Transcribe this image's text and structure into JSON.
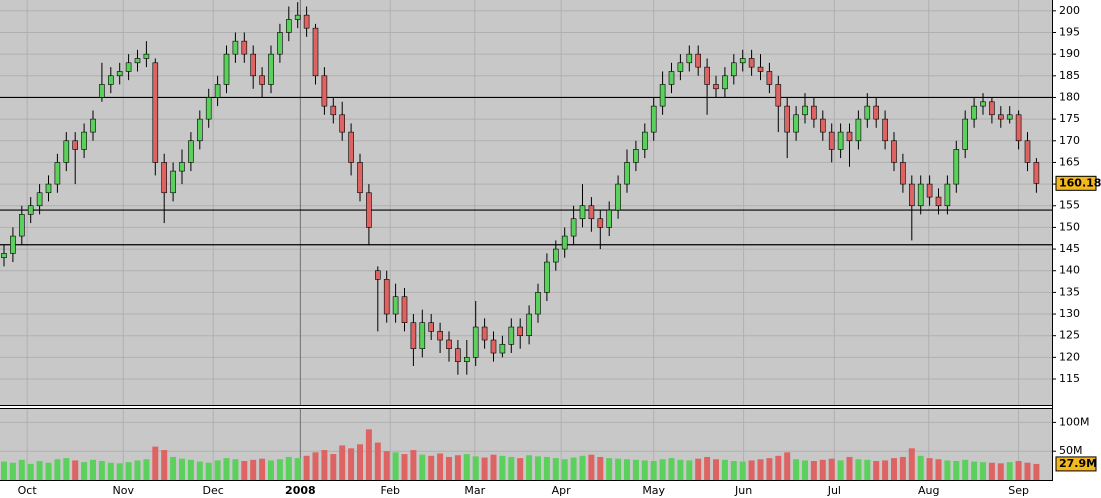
{
  "chart_data": {
    "type": "candlestick",
    "open": [
      143,
      144,
      148,
      153,
      155,
      158,
      160,
      165,
      170,
      168,
      172,
      180,
      183,
      185,
      186,
      188,
      189,
      188,
      165,
      158,
      163,
      165,
      170,
      175,
      180,
      183,
      190,
      193,
      190,
      185,
      183,
      190,
      195,
      198,
      199,
      196,
      185,
      178,
      176,
      172,
      165,
      158,
      140,
      138,
      130,
      134,
      128,
      122,
      128,
      126,
      124,
      122,
      119,
      120,
      127,
      124,
      121,
      123,
      127,
      125,
      130,
      135,
      142,
      145,
      148,
      152,
      155,
      152,
      150,
      154,
      160,
      165,
      168,
      172,
      178,
      183,
      186,
      188,
      190,
      187,
      183,
      182,
      185,
      188,
      189,
      187,
      186,
      183,
      178,
      172,
      176,
      178,
      175,
      172,
      168,
      172,
      170,
      175,
      178,
      175,
      170,
      165,
      160,
      155,
      160,
      157,
      155,
      160,
      168,
      175,
      178,
      179,
      176,
      175,
      176,
      170,
      165
    ],
    "high": [
      146,
      150,
      155,
      157,
      160,
      162,
      167,
      172,
      172,
      174,
      177,
      188,
      187,
      188,
      190,
      191,
      193,
      189,
      167,
      165,
      168,
      172,
      177,
      182,
      185,
      192,
      195,
      195,
      192,
      187,
      192,
      197,
      201,
      202,
      201,
      197,
      187,
      180,
      179,
      174,
      167,
      160,
      141,
      140,
      137,
      136,
      130,
      131,
      130,
      128,
      126,
      124,
      124,
      133,
      129,
      126,
      125,
      129,
      129,
      132,
      137,
      144,
      147,
      150,
      155,
      160,
      157,
      154,
      156,
      162,
      168,
      170,
      174,
      180,
      186,
      188,
      190,
      192,
      192,
      189,
      185,
      187,
      190,
      191,
      191,
      190,
      188,
      185,
      180,
      178,
      181,
      180,
      177,
      174,
      174,
      174,
      177,
      181,
      180,
      177,
      172,
      167,
      162,
      162,
      162,
      159,
      162,
      170,
      177,
      180,
      181,
      180,
      178,
      178,
      177,
      172,
      166
    ],
    "low": [
      141,
      142,
      146,
      151,
      153,
      156,
      158,
      163,
      160,
      166,
      170,
      179,
      181,
      183,
      184,
      186,
      187,
      162,
      151,
      156,
      160,
      163,
      168,
      173,
      178,
      181,
      188,
      188,
      182,
      180,
      181,
      188,
      193,
      196,
      194,
      183,
      176,
      174,
      170,
      162,
      156,
      146,
      126,
      128,
      128,
      126,
      118,
      120,
      124,
      121,
      119,
      116,
      116,
      118,
      122,
      119,
      120,
      121,
      122,
      123,
      128,
      133,
      140,
      143,
      146,
      150,
      149,
      145,
      148,
      152,
      158,
      163,
      166,
      170,
      176,
      181,
      184,
      186,
      185,
      176,
      180,
      180,
      183,
      186,
      185,
      184,
      181,
      172,
      166,
      170,
      174,
      173,
      170,
      165,
      166,
      164,
      168,
      173,
      173,
      168,
      163,
      158,
      147,
      153,
      155,
      153,
      153,
      158,
      166,
      173,
      176,
      174,
      173,
      174,
      168,
      163,
      158
    ],
    "close": [
      144,
      148,
      153,
      155,
      158,
      160,
      165,
      170,
      168,
      172,
      175,
      183,
      185,
      186,
      188,
      189,
      190,
      165,
      158,
      163,
      165,
      170,
      175,
      180,
      183,
      190,
      193,
      190,
      185,
      183,
      190,
      195,
      198,
      199,
      196,
      185,
      178,
      176,
      172,
      165,
      158,
      150,
      138,
      130,
      134,
      128,
      122,
      128,
      126,
      124,
      122,
      119,
      120,
      127,
      124,
      121,
      123,
      127,
      125,
      130,
      135,
      142,
      145,
      148,
      152,
      155,
      152,
      150,
      154,
      160,
      165,
      168,
      172,
      178,
      183,
      186,
      188,
      190,
      187,
      183,
      182,
      185,
      188,
      189,
      187,
      186,
      183,
      178,
      172,
      176,
      178,
      175,
      172,
      168,
      172,
      170,
      175,
      178,
      175,
      170,
      165,
      160,
      155,
      160,
      157,
      155,
      160,
      168,
      175,
      178,
      179,
      176,
      175,
      176,
      170,
      165,
      160.18
    ],
    "volume": [
      32,
      30,
      35,
      28,
      33,
      30,
      36,
      38,
      34,
      31,
      35,
      33,
      30,
      29,
      31,
      34,
      36,
      58,
      52,
      40,
      37,
      35,
      32,
      30,
      34,
      38,
      36,
      33,
      35,
      37,
      34,
      36,
      40,
      38,
      42,
      48,
      52,
      45,
      60,
      55,
      62,
      88,
      65,
      50,
      48,
      45,
      52,
      44,
      42,
      46,
      40,
      43,
      45,
      41,
      39,
      44,
      42,
      40,
      38,
      43,
      41,
      40,
      38,
      36,
      39,
      42,
      44,
      40,
      38,
      37,
      36,
      35,
      34,
      33,
      36,
      38,
      35,
      34,
      37,
      40,
      36,
      35,
      33,
      32,
      34,
      36,
      38,
      42,
      48,
      36,
      34,
      33,
      35,
      37,
      34,
      40,
      36,
      35,
      33,
      34,
      38,
      40,
      55,
      42,
      38,
      36,
      34,
      33,
      35,
      32,
      31,
      30,
      29,
      31,
      33,
      30,
      27.9
    ],
    "last_volume_label": "27.9M",
    "up_color": "#5cd05c",
    "down_color": "#de6464",
    "ylim": [
      109,
      202.5
    ],
    "yticks": [
      115,
      120,
      125,
      130,
      135,
      140,
      145,
      150,
      155,
      160,
      165,
      170,
      175,
      180,
      185,
      190,
      195,
      200
    ],
    "volume_ylim": [
      0,
      125
    ],
    "volume_yticks": [
      {
        "value": 100,
        "label": "100M"
      },
      {
        "value": 50,
        "label": "50M"
      }
    ],
    "reference_lines": [
      180,
      154,
      146
    ],
    "xticks": [
      {
        "value": 2.6,
        "label": "Oct"
      },
      {
        "value": 13.4,
        "label": "Nov"
      },
      {
        "value": 23.5,
        "label": "Dec"
      },
      {
        "value": 33.3,
        "label": "2008",
        "bold": true
      },
      {
        "value": 43.4,
        "label": "Feb"
      },
      {
        "value": 52.9,
        "label": "Mar"
      },
      {
        "value": 62.6,
        "label": "Apr"
      },
      {
        "value": 73,
        "label": "May"
      },
      {
        "value": 83.1,
        "label": "Jun"
      },
      {
        "value": 93.3,
        "label": "Jul"
      },
      {
        "value": 103.9,
        "label": "Aug"
      },
      {
        "value": 114,
        "label": "Sep"
      }
    ],
    "grid": true
  }
}
